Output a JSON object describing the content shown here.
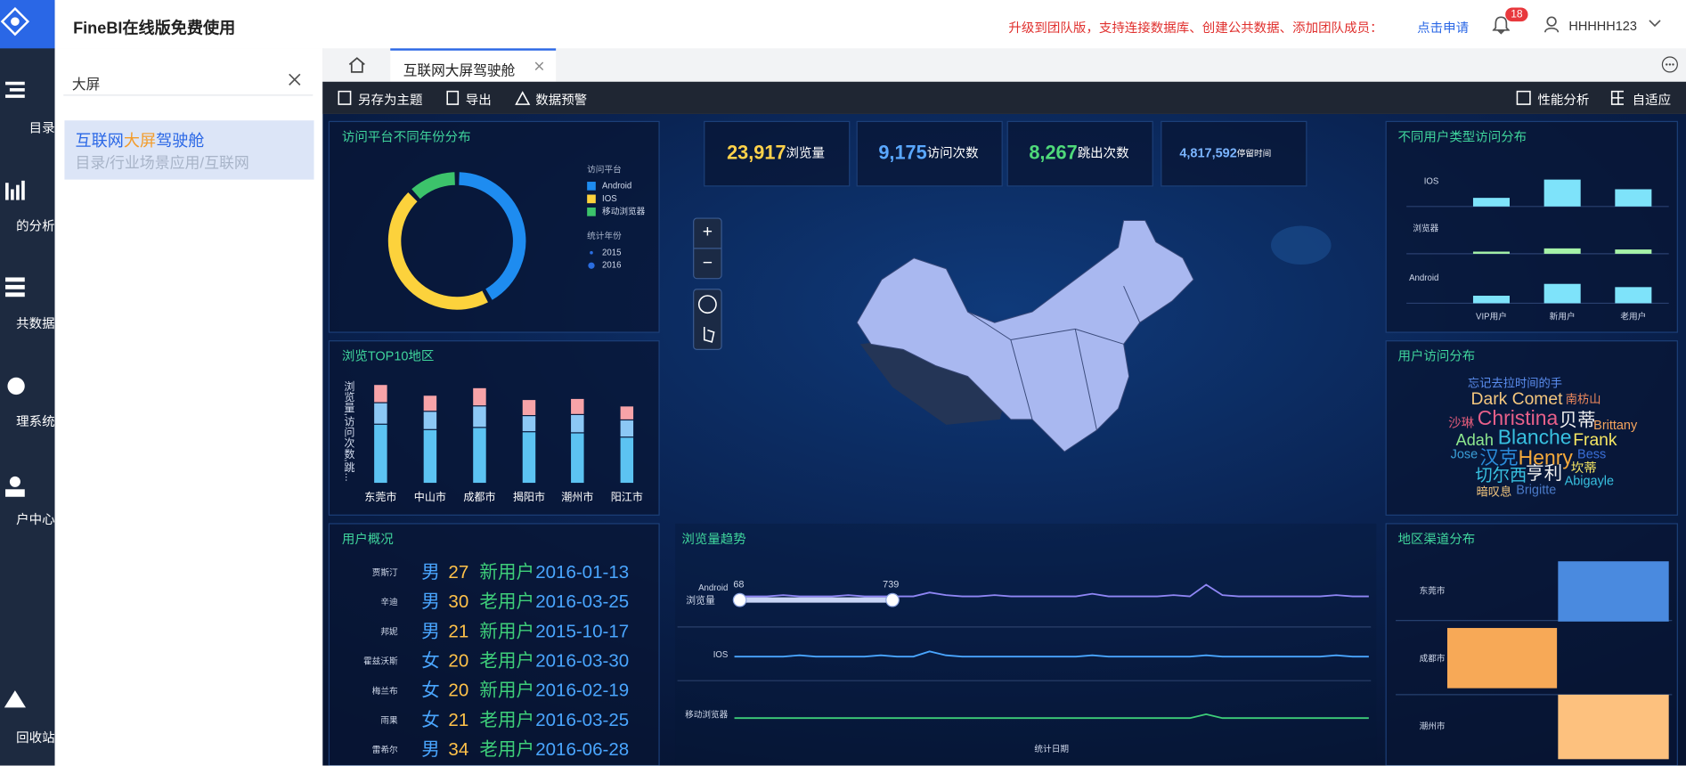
{
  "header": {
    "title": "FineBI在线版免费使用",
    "promo": "升级到团队版，支持连接数据库、创建公共数据、添加团队成员：",
    "apply": "点击申请",
    "badge": "18",
    "user": "HHHHH123"
  },
  "sidebar": [
    "目录",
    "的分析",
    "共数据",
    "理系统",
    "户中心",
    "回收站"
  ],
  "search": {
    "query": "大屏",
    "result_title": [
      "互联网",
      "大屏",
      "驾驶舱"
    ],
    "result_path": "目录/行业场景应用/互联网"
  },
  "tab": "互联网大屏驾驶舱",
  "toolbar": {
    "left": [
      "另存为主题",
      "导出",
      "数据预警"
    ],
    "right": [
      "性能分析",
      "自适应"
    ]
  },
  "kpis": [
    {
      "value": "23,917",
      "label": "浏览量",
      "color": "#ffd24a"
    },
    {
      "value": "9,175",
      "label": "访问次数",
      "color": "#5aa8ff"
    },
    {
      "value": "8,267",
      "label": "跳出次数",
      "color": "#4fd97a"
    },
    {
      "value": "4,817,592",
      "label": "停留时间",
      "color": "#7ab4ff"
    }
  ],
  "platform_chart": {
    "type": "pie",
    "title": "访问平台不同年份分布",
    "legend_title": "访问平台",
    "series": [
      {
        "name": "Android",
        "color": "#1e8cf0",
        "value": 42
      },
      {
        "name": "IOS",
        "color": "#fcd23c",
        "value": 46
      },
      {
        "name": "移动浏览器",
        "color": "#3cc36b",
        "value": 12
      }
    ],
    "year_title": "统计年份",
    "years": [
      2015,
      2016
    ]
  },
  "region_chart": {
    "type": "bar",
    "title": "浏览TOP10地区",
    "axis_label": "浏览量,访问次数,跳...",
    "categories": [
      "东莞市",
      "中山市",
      "成都市",
      "揭阳市",
      "潮州市",
      "阳江市"
    ],
    "series": [
      {
        "color": "#5cc3f2",
        "values": [
          55,
          50,
          52,
          48,
          47,
          43
        ]
      },
      {
        "color": "#8cc8f5",
        "values": [
          20,
          17,
          20,
          15,
          17,
          16
        ]
      },
      {
        "color": "#f7a3a8",
        "values": [
          17,
          15,
          17,
          15,
          15,
          13
        ]
      }
    ]
  },
  "users": {
    "title": "用户概况",
    "rows": [
      [
        "贾斯汀",
        "男",
        27,
        "新用户",
        "2016-01-13"
      ],
      [
        "辛迪",
        "男",
        30,
        "老用户",
        "2016-03-25"
      ],
      [
        "邦妮",
        "男",
        21,
        "新用户",
        "2015-10-17"
      ],
      [
        "霍兹沃斯",
        "女",
        20,
        "老用户",
        "2016-03-30"
      ],
      [
        "梅兰布",
        "女",
        20,
        "新用户",
        "2016-02-19"
      ],
      [
        "雨果",
        "女",
        21,
        "老用户",
        "2016-03-25"
      ],
      [
        "雷希尔",
        "男",
        34,
        "老用户",
        "2016-06-28"
      ]
    ]
  },
  "map": {
    "zoom_in": "+",
    "zoom_out": "−"
  },
  "trend_chart": {
    "type": "line",
    "title": "浏览量趋势",
    "y_label": "浏览量",
    "x_label": "统计日期",
    "range_labels": [
      68,
      739
    ],
    "series": [
      {
        "name": "Android",
        "color": "#8f86f5",
        "values": [
          2,
          2,
          2,
          3,
          2,
          2,
          2,
          3,
          2,
          2,
          2,
          2,
          5,
          3,
          2,
          2,
          3,
          2,
          2,
          2,
          2,
          2,
          4,
          2,
          2,
          2,
          2,
          3,
          2,
          11,
          3,
          2,
          2,
          2,
          2,
          2,
          2,
          3,
          2,
          2
        ]
      },
      {
        "name": "IOS",
        "color": "#4aa6ff",
        "values": [
          2,
          2,
          2,
          2,
          3,
          2,
          2,
          2,
          2,
          3,
          2,
          2,
          6,
          3,
          2,
          2,
          2,
          2,
          2,
          2,
          2,
          2,
          3,
          2,
          2,
          2,
          2,
          2,
          2,
          3,
          2,
          2,
          2,
          2,
          2,
          2,
          2,
          3,
          2,
          2
        ]
      },
      {
        "name": "移动浏览器",
        "color": "#3ecf7a",
        "values": [
          1,
          1,
          1,
          1,
          1,
          1,
          1,
          1,
          1,
          1,
          1,
          1,
          1,
          1,
          1,
          1,
          1,
          1,
          1,
          1,
          1,
          1,
          1,
          1,
          1,
          1,
          1,
          1,
          1,
          4,
          1,
          1,
          1,
          1,
          1,
          1,
          1,
          1,
          1,
          1
        ]
      }
    ]
  },
  "usertype_chart": {
    "type": "bar",
    "title": "不同用户类型访问分布",
    "categories": [
      "VIP用户",
      "新用户",
      "老用户"
    ],
    "series": [
      {
        "name": "IOS",
        "color": "#7ee3fa",
        "values": [
          8,
          25,
          16
        ]
      },
      {
        "name": "浏览器",
        "color": "#a6f2a8",
        "values": [
          2,
          5,
          4
        ]
      },
      {
        "name": "Android",
        "color": "#7ee3fa",
        "values": [
          7,
          18,
          15
        ]
      }
    ]
  },
  "wordcloud": {
    "title": "用户访问分布",
    "words": [
      {
        "text": "忘记去拉时间的手",
        "color": "#5b8ef0"
      },
      {
        "text": "Dark Comet",
        "color": "#f5c77e"
      },
      {
        "text": "南枋山",
        "color": "#f08a5d"
      },
      {
        "text": "沙琳",
        "color": "#e05b7a"
      },
      {
        "text": "Christina",
        "color": "#e8608a"
      },
      {
        "text": "贝蒂",
        "color": "#f0f0f0"
      },
      {
        "text": "Brittany",
        "color": "#f5a45d"
      },
      {
        "text": "Adah",
        "color": "#8ee88e"
      },
      {
        "text": "Blanche",
        "color": "#38c0e0"
      },
      {
        "text": "Frank",
        "color": "#f5e663"
      },
      {
        "text": "Jose",
        "color": "#3a9fd8"
      },
      {
        "text": "汉克",
        "color": "#2a8ad8"
      },
      {
        "text": "Henry",
        "color": "#f5a93b"
      },
      {
        "text": "Bess",
        "color": "#3a6fd8"
      },
      {
        "text": "切尔西",
        "color": "#38c0e0"
      },
      {
        "text": "亨利",
        "color": "#f0f0f0"
      },
      {
        "text": "坎蒂",
        "color": "#f5e663"
      },
      {
        "text": "Abigayle",
        "color": "#38c0e0"
      },
      {
        "text": "暗叹息",
        "color": "#f5c77e"
      },
      {
        "text": "Brigitte",
        "color": "#4a7ac8"
      }
    ]
  },
  "channel_chart": {
    "title": "地区渠道分布",
    "categories": [
      "东莞市",
      "成都市",
      "潮州市"
    ]
  }
}
